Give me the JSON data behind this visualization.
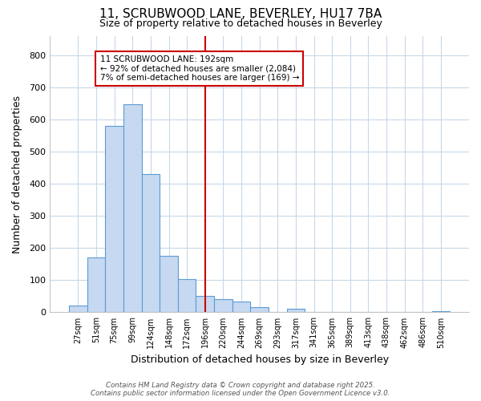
{
  "title": "11, SCRUBWOOD LANE, BEVERLEY, HU17 7BA",
  "subtitle": "Size of property relative to detached houses in Beverley",
  "xlabel": "Distribution of detached houses by size in Beverley",
  "ylabel": "Number of detached properties",
  "bar_color": "#c6d9f0",
  "bar_edge_color": "#5b9bd5",
  "categories": [
    "27sqm",
    "51sqm",
    "75sqm",
    "99sqm",
    "124sqm",
    "148sqm",
    "172sqm",
    "196sqm",
    "220sqm",
    "244sqm",
    "269sqm",
    "293sqm",
    "317sqm",
    "341sqm",
    "365sqm",
    "389sqm",
    "413sqm",
    "438sqm",
    "462sqm",
    "486sqm",
    "510sqm"
  ],
  "values": [
    20,
    170,
    580,
    648,
    430,
    175,
    103,
    52,
    40,
    33,
    15,
    0,
    12,
    0,
    0,
    0,
    0,
    0,
    0,
    0,
    3
  ],
  "vline_position": 7,
  "vline_color": "#cc0000",
  "ylim": [
    0,
    860
  ],
  "yticks": [
    0,
    100,
    200,
    300,
    400,
    500,
    600,
    700,
    800
  ],
  "annotation_title": "11 SCRUBWOOD LANE: 192sqm",
  "annotation_line1": "← 92% of detached houses are smaller (2,084)",
  "annotation_line2": "7% of semi-detached houses are larger (169) →",
  "footer1": "Contains HM Land Registry data © Crown copyright and database right 2025.",
  "footer2": "Contains public sector information licensed under the Open Government Licence v3.0.",
  "bg_color": "#ffffff",
  "plot_bg_color": "#ffffff",
  "grid_color": "#c8d8e8"
}
